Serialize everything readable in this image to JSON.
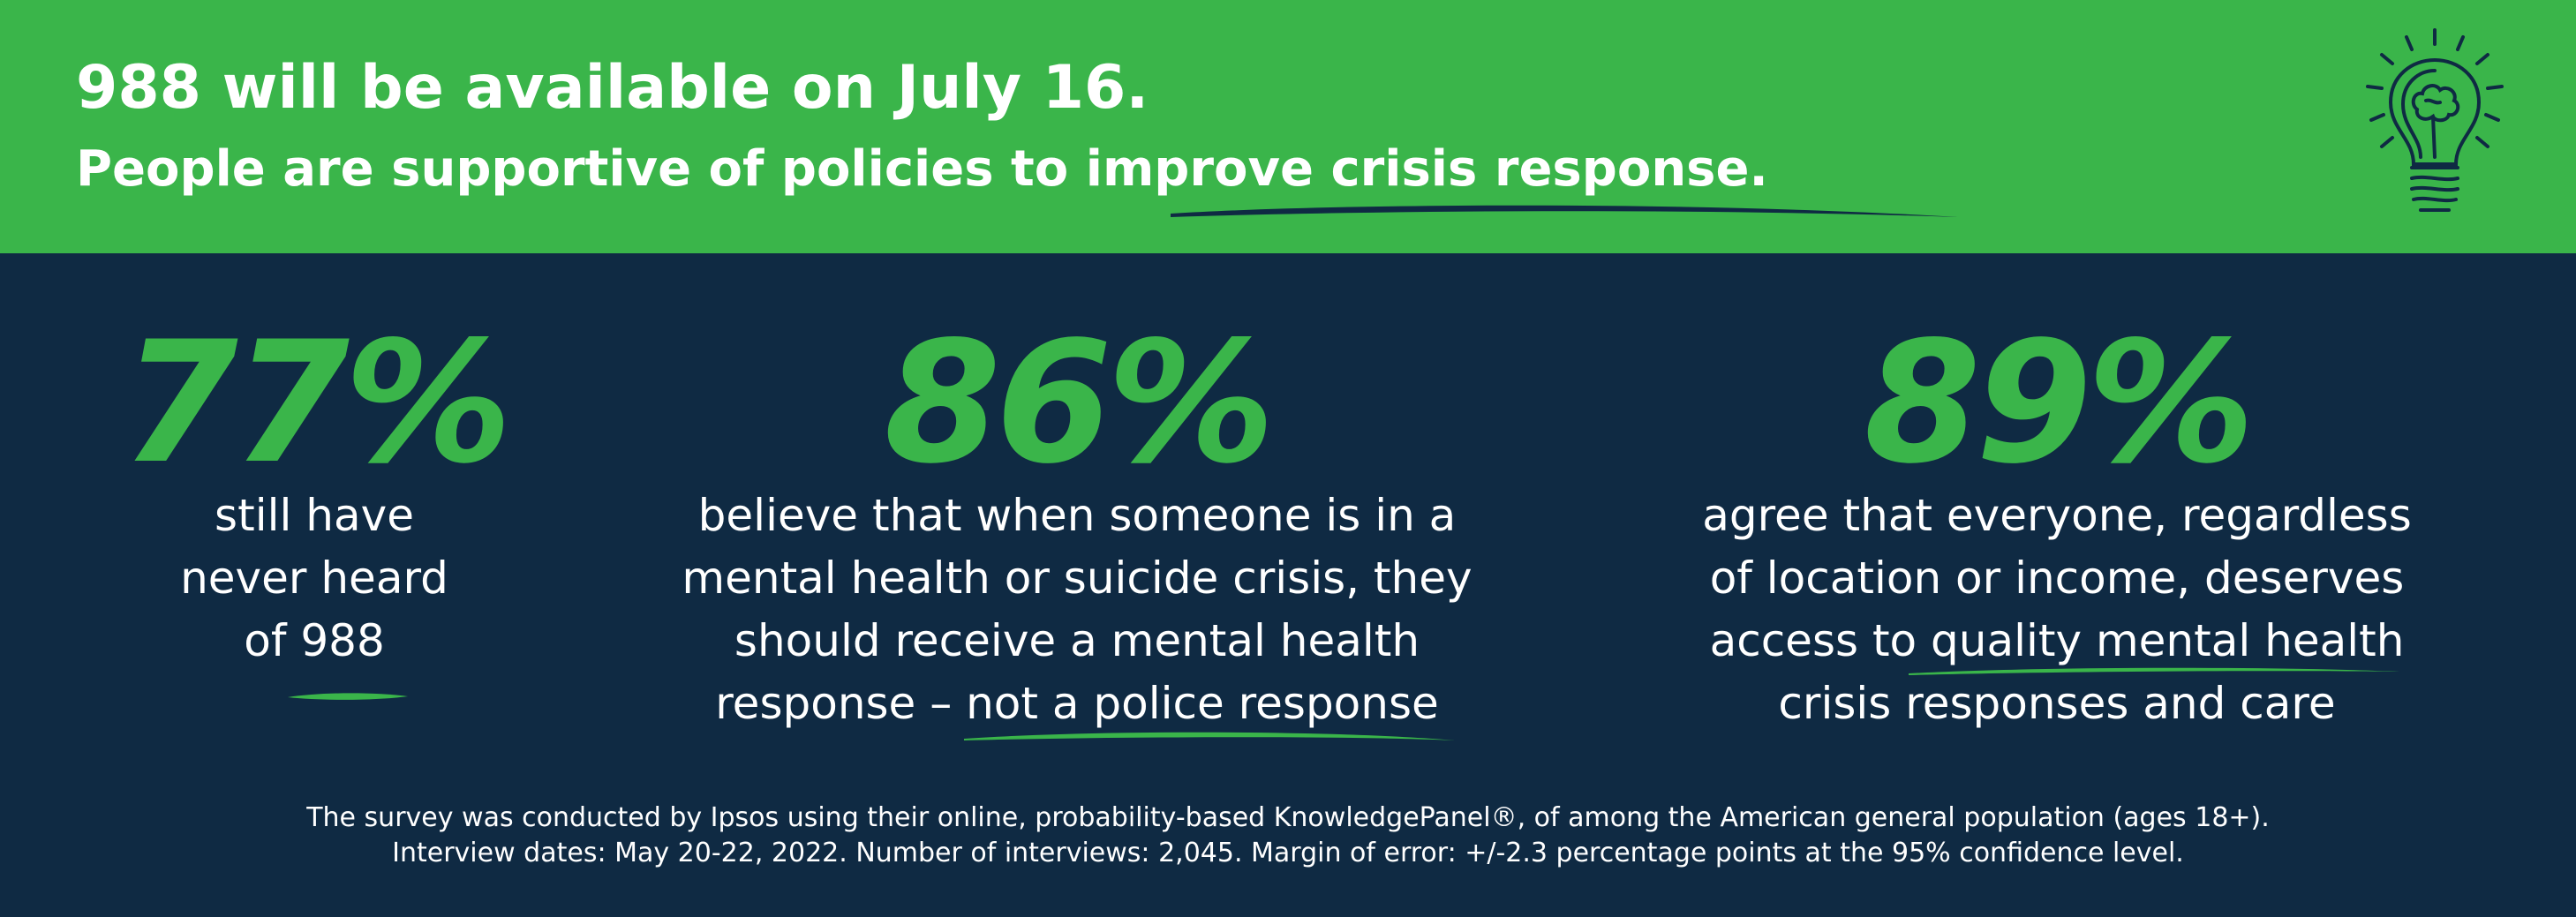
{
  "header": {
    "headline": "988 will be available on July 16.",
    "subheadline": "People are supportive of policies to improve crisis response.",
    "icon": "lightbulb-brain-icon"
  },
  "stats": [
    {
      "value": "77%",
      "lines": [
        "still have",
        "never heard",
        "of 988"
      ]
    },
    {
      "value": "86%",
      "lines": [
        "believe that when someone is in a",
        "mental health or suicide crisis, they",
        "should receive a mental health",
        "response – not a police response"
      ]
    },
    {
      "value": "89%",
      "lines": [
        "agree that everyone, regardless",
        "of location or income, deserves",
        "access to quality mental health",
        "crisis responses and care"
      ]
    }
  ],
  "footnote": {
    "line1": "The survey was conducted by Ipsos using their online, probability-based KnowledgePanel®, of among the American general population (ages 18+).",
    "line2": "Interview dates: May 20-22, 2022. Number of interviews: 2,045. Margin of error: +/-2.3 percentage points at the 95% confidence level."
  },
  "colors": {
    "green": "#3ab54a",
    "navy": "#0f2a43",
    "white": "#ffffff"
  }
}
